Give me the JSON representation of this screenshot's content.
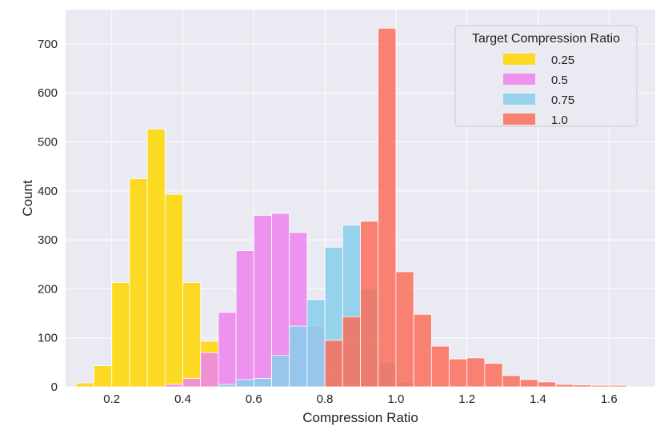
{
  "chart_data": {
    "type": "histogram",
    "xlabel": "Compression Ratio",
    "ylabel": "Count",
    "xlim": [
      0.07,
      1.73
    ],
    "ylim": [
      0,
      770
    ],
    "xticks": [
      "0.2",
      "0.4",
      "0.6",
      "0.8",
      "1.0",
      "1.2",
      "1.4",
      "1.6"
    ],
    "yticks": [
      "0",
      "100",
      "200",
      "300",
      "400",
      "500",
      "600",
      "700"
    ],
    "grid": true,
    "background": "#eaeaf2",
    "bin_width": 0.05,
    "legend": {
      "title": "Target Compression Ratio",
      "placement": "top-right"
    },
    "series": [
      {
        "name": "0.25",
        "color": "#ffd700",
        "bin_starts": [
          0.1,
          0.15,
          0.2,
          0.25,
          0.3,
          0.35,
          0.4,
          0.45,
          0.5
        ],
        "counts": [
          8,
          43,
          213,
          425,
          526,
          393,
          213,
          93,
          5
        ]
      },
      {
        "name": "0.5",
        "color": "#ee82ee",
        "bin_starts": [
          0.35,
          0.4,
          0.45,
          0.5,
          0.55,
          0.6,
          0.65,
          0.7,
          0.75,
          0.8,
          0.85
        ],
        "counts": [
          5,
          17,
          70,
          152,
          278,
          350,
          354,
          315,
          123,
          30,
          5
        ]
      },
      {
        "name": "0.75",
        "color": "#87ceeb",
        "bin_starts": [
          0.5,
          0.55,
          0.6,
          0.65,
          0.7,
          0.75,
          0.8,
          0.85,
          0.9,
          0.95,
          1.0
        ],
        "counts": [
          5,
          15,
          17,
          64,
          124,
          178,
          285,
          330,
          200,
          50,
          10
        ]
      },
      {
        "name": "1.0",
        "color": "#fa6f5a",
        "bin_starts": [
          0.8,
          0.85,
          0.9,
          0.95,
          1.0,
          1.05,
          1.1,
          1.15,
          1.2,
          1.25,
          1.3,
          1.35,
          1.4,
          1.45,
          1.5,
          1.55,
          1.6
        ],
        "counts": [
          95,
          143,
          338,
          732,
          235,
          148,
          83,
          57,
          59,
          48,
          23,
          15,
          10,
          5,
          4,
          3,
          3
        ]
      }
    ]
  }
}
